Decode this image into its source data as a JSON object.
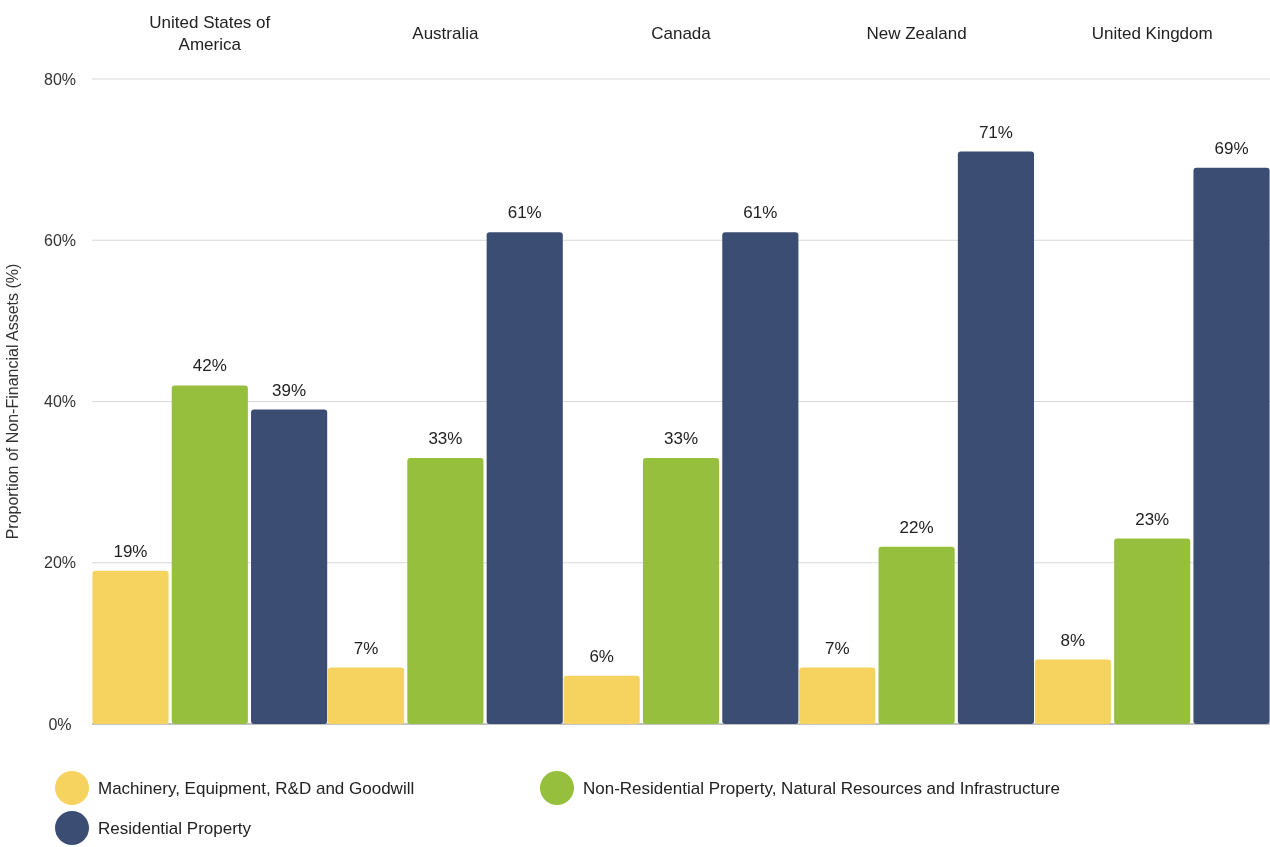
{
  "chart_data": {
    "type": "bar",
    "ylabel": "Proportion of Non-Financial Assets (%)",
    "categories": [
      "United States of America",
      "Australia",
      "Canada",
      "New Zealand",
      "United Kingdom"
    ],
    "series": [
      {
        "name": "Machinery, Equipment, R&D and Goodwill",
        "color": "#f6d35f",
        "values": [
          19,
          7,
          6,
          7,
          8
        ],
        "value_labels": [
          "19%",
          "7%",
          "6%",
          "7%",
          "8%"
        ]
      },
      {
        "name": "Non-Residential Property, Natural Resources and Infrastructure",
        "color": "#95bf3c",
        "values": [
          42,
          33,
          33,
          22,
          23
        ],
        "value_labels": [
          "42%",
          "33%",
          "33%",
          "22%",
          "23%"
        ]
      },
      {
        "name": "Residential Property",
        "color": "#3b4d72",
        "values": [
          39,
          61,
          61,
          71,
          69
        ],
        "value_labels": [
          "39%",
          "61%",
          "61%",
          "71%",
          "69%"
        ]
      }
    ],
    "ylim": [
      0,
      80
    ],
    "yticks": [
      {
        "value": 0,
        "label": "0%"
      },
      {
        "value": 20,
        "label": "20%"
      },
      {
        "value": 40,
        "label": "40%"
      },
      {
        "value": 60,
        "label": "60%"
      },
      {
        "value": 80,
        "label": "80%"
      }
    ],
    "grid": "y",
    "legend": "bottom left"
  }
}
